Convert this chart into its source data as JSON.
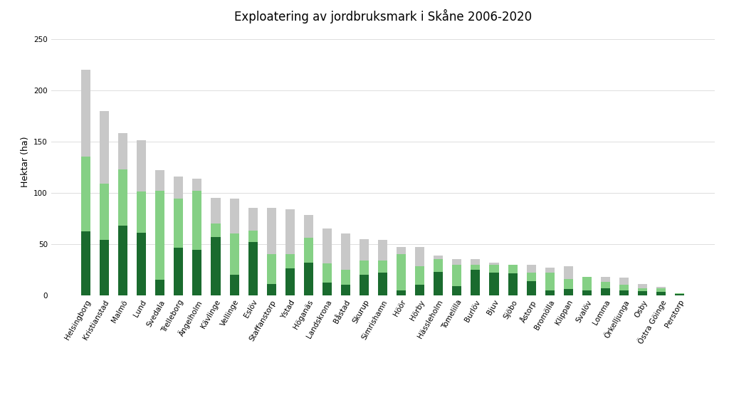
{
  "title": "Exploatering av jordbruksmark i Skåne 2006-2020",
  "ylabel": "Hektar (ha)",
  "categories": [
    "Helsingborg",
    "Kristianstad",
    "Malmö",
    "Lund",
    "Svedala",
    "Trelleborg",
    "Ängelholm",
    "Kävlinge",
    "Vellinge",
    "Eslöv",
    "Staffanstorp",
    "Ystad",
    "Höganäs",
    "Landskrona",
    "Båstad",
    "Skurup",
    "Simrishamn",
    "Höör",
    "Hörby",
    "Hässleholm",
    "Tomelilla",
    "Burlöv",
    "Bjuv",
    "Sjöbo",
    "Åstorp",
    "Bromölla",
    "Klippan",
    "Svalöv",
    "Lomma",
    "Örkelljunga",
    "Osby",
    "Östra Göinge",
    "Perstorp"
  ],
  "series_2006_2010": [
    62,
    54,
    68,
    61,
    15,
    46,
    44,
    57,
    20,
    52,
    11,
    26,
    32,
    12,
    10,
    20,
    22,
    5,
    10,
    23,
    9,
    25,
    22,
    21,
    14,
    5,
    6,
    5,
    7,
    5,
    4,
    3,
    1
  ],
  "series_2011_2015": [
    73,
    55,
    55,
    40,
    87,
    48,
    58,
    13,
    40,
    11,
    29,
    14,
    24,
    19,
    15,
    14,
    12,
    35,
    18,
    12,
    21,
    5,
    8,
    9,
    8,
    17,
    10,
    13,
    6,
    5,
    3,
    4,
    1
  ],
  "series_2016_2020": [
    85,
    71,
    35,
    50,
    20,
    22,
    12,
    25,
    34,
    22,
    45,
    44,
    22,
    34,
    35,
    21,
    20,
    7,
    19,
    4,
    5,
    5,
    2,
    0,
    8,
    5,
    12,
    0,
    5,
    7,
    4,
    1,
    0
  ],
  "color_2006_2010": "#1a6b2e",
  "color_2011_2015": "#85d085",
  "color_2016_2020": "#c8c8c8",
  "ylim": [
    0,
    260
  ],
  "yticks": [
    0,
    50,
    100,
    150,
    200,
    250
  ],
  "background_color": "#ffffff",
  "title_fontsize": 12,
  "ylabel_fontsize": 9,
  "tick_fontsize": 7.5,
  "bar_width": 0.5,
  "legend_fontsize": 9
}
